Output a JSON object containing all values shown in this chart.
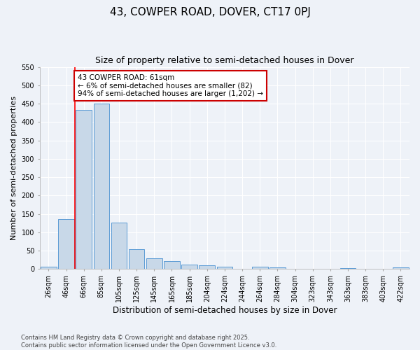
{
  "title": "43, COWPER ROAD, DOVER, CT17 0PJ",
  "subtitle": "Size of property relative to semi-detached houses in Dover",
  "xlabel": "Distribution of semi-detached houses by size in Dover",
  "ylabel": "Number of semi-detached properties",
  "bar_color": "#c8d8e8",
  "bar_edge_color": "#5b9bd5",
  "background_color": "#eef2f8",
  "grid_color": "#ffffff",
  "categories": [
    "26sqm",
    "46sqm",
    "66sqm",
    "85sqm",
    "105sqm",
    "125sqm",
    "145sqm",
    "165sqm",
    "185sqm",
    "204sqm",
    "224sqm",
    "244sqm",
    "264sqm",
    "284sqm",
    "304sqm",
    "323sqm",
    "343sqm",
    "363sqm",
    "383sqm",
    "403sqm",
    "422sqm"
  ],
  "values": [
    7,
    136,
    433,
    450,
    126,
    55,
    30,
    22,
    12,
    10,
    6,
    0,
    6,
    4,
    0,
    0,
    0,
    3,
    0,
    0,
    5
  ],
  "ylim": [
    0,
    550
  ],
  "yticks": [
    0,
    50,
    100,
    150,
    200,
    250,
    300,
    350,
    400,
    450,
    500,
    550
  ],
  "red_line_x": 1.5,
  "annotation_text": "43 COWPER ROAD: 61sqm\n← 6% of semi-detached houses are smaller (82)\n94% of semi-detached houses are larger (1,202) →",
  "annotation_box_color": "#ffffff",
  "annotation_box_edge_color": "#cc0000",
  "footer_text": "Contains HM Land Registry data © Crown copyright and database right 2025.\nContains public sector information licensed under the Open Government Licence v3.0.",
  "title_fontsize": 11,
  "subtitle_fontsize": 9,
  "xlabel_fontsize": 8.5,
  "ylabel_fontsize": 8,
  "tick_fontsize": 7,
  "annotation_fontsize": 7.5,
  "footer_fontsize": 6
}
